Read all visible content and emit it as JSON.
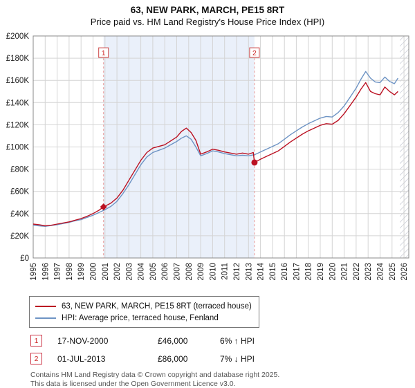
{
  "header": {
    "title": "63, NEW PARK, MARCH, PE15 8RT",
    "subtitle": "Price paid vs. HM Land Registry's House Price Index (HPI)"
  },
  "chart_data": {
    "type": "line",
    "title": "63, NEW PARK, MARCH, PE15 8RT",
    "subtitle": "Price paid vs. HM Land Registry's House Price Index (HPI)",
    "y_unit": "GBP thousands",
    "ylim": [
      0,
      200
    ],
    "ytick_step": 20,
    "x_range": [
      1995,
      2026.4
    ],
    "x_ticks": [
      1995,
      1996,
      1997,
      1998,
      1999,
      2000,
      2001,
      2002,
      2003,
      2004,
      2005,
      2006,
      2007,
      2008,
      2009,
      2010,
      2011,
      2012,
      2013,
      2014,
      2015,
      2016,
      2017,
      2018,
      2019,
      2020,
      2021,
      2022,
      2023,
      2024,
      2025,
      2026
    ],
    "grid": true,
    "legend_position": "bottom",
    "colors": {
      "red": "#bb1122",
      "blue": "#6d93c4",
      "shade": "#eaf0fa",
      "grid": "#d4d4d4",
      "dashed": "#e89a9a",
      "hatch": "#b9bdc9",
      "box_border": "#cc4444",
      "box_text": "#cc2222",
      "axis": "#888888"
    },
    "series": [
      {
        "name": "63, NEW PARK, MARCH, PE15 8RT (terraced house)",
        "color": "#bb1122",
        "x": [
          1995,
          1995.5,
          1996,
          1996.5,
          1997,
          1997.5,
          1998,
          1998.5,
          1999,
          1999.5,
          2000,
          2000.5,
          2000.88,
          2001.5,
          2002,
          2002.5,
          2003,
          2003.5,
          2004,
          2004.5,
          2005,
          2005.5,
          2006,
          2006.5,
          2007,
          2007.4,
          2007.8,
          2008.2,
          2008.6,
          2009,
          2009.5,
          2010,
          2010.5,
          2011,
          2011.5,
          2012,
          2012.5,
          2013,
          2013.4,
          2013.5,
          2014,
          2014.5,
          2015,
          2015.5,
          2016,
          2016.5,
          2017,
          2017.5,
          2018,
          2018.5,
          2019,
          2019.5,
          2020,
          2020.5,
          2021,
          2021.5,
          2022,
          2022.4,
          2022.8,
          2023.2,
          2023.6,
          2024,
          2024.4,
          2024.8,
          2025.2,
          2025.5
        ],
        "y": [
          30.5,
          30,
          29,
          29.5,
          30.5,
          31.5,
          32.5,
          34,
          35.5,
          37.5,
          40,
          43,
          46,
          49.5,
          54,
          61,
          70,
          79,
          88,
          95,
          99,
          100.5,
          102,
          105.5,
          109,
          114,
          117,
          113,
          106,
          93.5,
          95.5,
          98,
          97,
          95.5,
          94.5,
          93.5,
          94.5,
          93.5,
          95,
          86,
          89,
          91.5,
          94,
          96.5,
          100.5,
          104.5,
          108,
          111.5,
          114.5,
          117,
          119.5,
          121,
          120.5,
          124,
          130,
          137.5,
          145,
          152,
          158,
          150,
          148,
          147,
          154,
          150,
          147,
          150
        ]
      },
      {
        "name": "HPI: Average price, terraced house, Fenland",
        "color": "#6d93c4",
        "x": [
          1995,
          1995.5,
          1996,
          1996.5,
          1997,
          1997.5,
          1998,
          1998.5,
          1999,
          1999.5,
          2000,
          2000.5,
          2001,
          2001.5,
          2002,
          2002.5,
          2003,
          2003.5,
          2004,
          2004.5,
          2005,
          2005.5,
          2006,
          2006.5,
          2007,
          2007.4,
          2007.8,
          2008.2,
          2008.6,
          2009,
          2009.5,
          2010,
          2010.5,
          2011,
          2011.5,
          2012,
          2012.5,
          2013,
          2013.5,
          2014,
          2014.5,
          2015,
          2015.5,
          2016,
          2016.5,
          2017,
          2017.5,
          2018,
          2018.5,
          2019,
          2019.5,
          2020,
          2020.5,
          2021,
          2021.5,
          2022,
          2022.4,
          2022.8,
          2023.2,
          2023.6,
          2024,
          2024.4,
          2024.8,
          2025.2,
          2025.5
        ],
        "y": [
          29.5,
          29,
          28.5,
          29.2,
          30,
          31,
          32,
          33.5,
          34.5,
          36.5,
          38.5,
          41,
          43.5,
          46.5,
          51,
          58,
          66,
          75,
          84,
          91,
          95,
          97,
          99,
          102,
          105,
          108,
          110,
          107,
          100,
          92,
          94,
          96.5,
          95.5,
          94,
          93,
          92,
          92.5,
          92,
          93,
          95.5,
          98,
          100.5,
          103,
          107,
          111,
          114.5,
          118,
          121,
          123.5,
          126,
          127.5,
          127,
          131,
          137,
          145,
          153,
          161,
          168,
          162,
          158.5,
          158,
          163,
          159,
          157,
          162
        ]
      }
    ],
    "sales": [
      {
        "label": "1",
        "x": 2000.88,
        "y": 46,
        "marker": "diamond"
      },
      {
        "label": "2",
        "x": 2013.5,
        "y": 86,
        "marker": "circle"
      }
    ],
    "shaded_region": [
      2000.88,
      2013.5
    ],
    "hatch_region": [
      2025.65,
      2026.4
    ]
  },
  "legend": {
    "items": [
      {
        "label": "63, NEW PARK, MARCH, PE15 8RT (terraced house)",
        "color": "#bb1122"
      },
      {
        "label": "HPI: Average price, terraced house, Fenland",
        "color": "#6d93c4"
      }
    ]
  },
  "annotations": [
    {
      "num": "1",
      "date": "17-NOV-2000",
      "price": "£46,000",
      "hpi": "6% ↑ HPI"
    },
    {
      "num": "2",
      "date": "01-JUL-2013",
      "price": "£86,000",
      "hpi": "7% ↓ HPI"
    }
  ],
  "footer": {
    "line1": "Contains HM Land Registry data © Crown copyright and database right 2025.",
    "line2": "This data is licensed under the Open Government Licence v3.0."
  }
}
